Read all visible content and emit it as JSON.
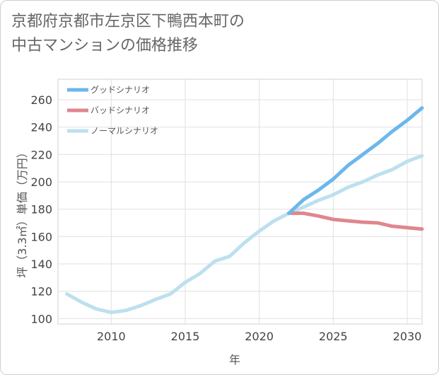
{
  "title_lines": [
    "京都府京都市左京区下鴨西本町の",
    "中古マンションの価格推移"
  ],
  "chart_data": {
    "type": "line",
    "xlabel": "年",
    "ylabel": "坪（3.3㎡）単価（万円）",
    "xlim": [
      2006.4,
      2031
    ],
    "ylim": [
      96,
      275
    ],
    "x_ticks": [
      2010,
      2015,
      2020,
      2025,
      2030
    ],
    "y_ticks": [
      100,
      120,
      140,
      160,
      180,
      200,
      220,
      240,
      260
    ],
    "legend": [
      "グッドシナリオ",
      "バッドシナリオ",
      "ノーマルシナリオ"
    ],
    "series": [
      {
        "name": "グッドシナリオ",
        "color": "#6cb7ec",
        "x": [
          2022,
          2023,
          2024,
          2025,
          2026,
          2027,
          2028,
          2029,
          2030,
          2031
        ],
        "values": [
          177,
          187,
          194,
          202,
          212,
          220,
          228,
          237,
          245,
          254
        ]
      },
      {
        "name": "バッドシナリオ",
        "color": "#e0868e",
        "x": [
          2022,
          2023,
          2024,
          2025,
          2026,
          2027,
          2028,
          2029,
          2030,
          2031
        ],
        "values": [
          177,
          177,
          175,
          172.5,
          171.5,
          170.5,
          170,
          167.5,
          166.5,
          165.5
        ]
      },
      {
        "name": "ノーマルシナリオ",
        "color": "#bde0ef",
        "x": [
          2007,
          2008,
          2009,
          2010,
          2011,
          2012,
          2013,
          2014,
          2015,
          2016,
          2017,
          2018,
          2019,
          2020,
          2021,
          2022,
          2023,
          2024,
          2025,
          2026,
          2027,
          2028,
          2029,
          2030,
          2031
        ],
        "values": [
          118,
          112,
          107,
          104.5,
          106,
          109.5,
          114,
          118,
          126.5,
          133,
          142,
          145.5,
          155.5,
          164,
          171.5,
          177,
          181.5,
          186.5,
          190.5,
          196,
          200,
          205,
          209,
          215,
          219
        ]
      }
    ]
  }
}
